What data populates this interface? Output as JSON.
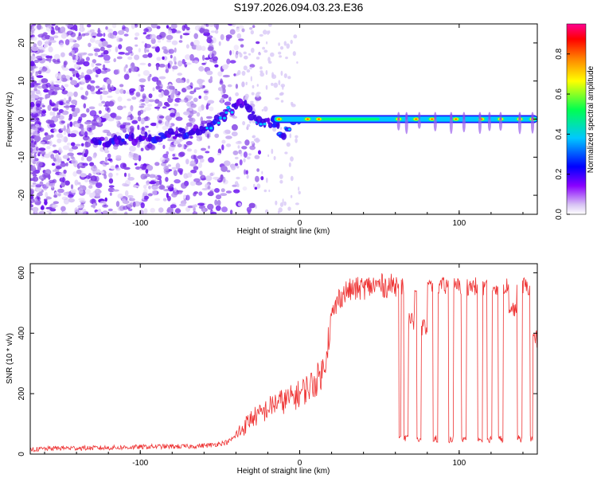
{
  "title": "S197.2026.094.03.23.E36",
  "chart_data": [
    {
      "type": "heatmap",
      "xlabel": "Height of straight line (km)",
      "ylabel": "Frequency (Hz)",
      "xlim": [
        -169,
        149
      ],
      "ylim": [
        -25,
        25
      ],
      "x_ticks": [
        "-100",
        "0",
        "100"
      ],
      "y_ticks": [
        "20",
        "10",
        "0",
        "-10",
        "-20"
      ],
      "colorbar": {
        "label": "Normalized spectral amplitude",
        "range": [
          0,
          0.95
        ],
        "ticks": [
          "0.0",
          "0.2",
          "0.4",
          "0.6",
          "0.8"
        ],
        "colors": [
          "#ffffff",
          "#c8a8f0",
          "#8a00ff",
          "#0000ff",
          "#00c8ff",
          "#00ff50",
          "#ffff00",
          "#ff8000",
          "#ff0000",
          "#ff0090"
        ]
      },
      "description_series": [
        {
          "name": "main tone ridge",
          "x": [
            -160,
            -120,
            -100,
            -80,
            -60,
            -50,
            -45,
            -40,
            -35,
            -30,
            -25,
            -20,
            -15,
            -10,
            -5,
            0,
            10,
            20,
            50,
            80,
            110,
            149
          ],
          "y": [
            -7,
            -6,
            -5,
            -4,
            -3,
            0,
            2,
            3,
            5,
            1,
            -1,
            0,
            -2,
            -4,
            -1,
            0,
            0,
            0,
            0,
            0,
            0,
            0
          ]
        }
      ]
    },
    {
      "type": "line",
      "xlabel": "Height of straight line (km)",
      "ylabel": "SNR (10 * v/v)",
      "xlim": [
        -169,
        149
      ],
      "ylim": [
        0,
        630
      ],
      "x_ticks": [
        "-100",
        "0",
        "100"
      ],
      "y_ticks": [
        "0",
        "200",
        "400",
        "600"
      ],
      "series": [
        {
          "name": "SNR",
          "color": "#ee3333",
          "x": [
            -169,
            -150,
            -130,
            -110,
            -90,
            -70,
            -55,
            -45,
            -40,
            -35,
            -30,
            -25,
            -20,
            -15,
            -10,
            -5,
            0,
            5,
            10,
            15,
            17,
            19,
            20,
            22,
            25,
            30,
            40,
            50,
            55,
            60,
            61,
            62
          ],
          "y": [
            15,
            20,
            20,
            22,
            25,
            25,
            30,
            40,
            60,
            90,
            120,
            130,
            150,
            170,
            175,
            185,
            200,
            220,
            240,
            280,
            350,
            420,
            450,
            480,
            520,
            540,
            550,
            560,
            555,
            560,
            560,
            600
          ]
        }
      ],
      "dropouts_x": [
        62,
        67,
        75,
        85,
        95,
        103,
        113,
        119,
        126,
        138,
        146
      ],
      "dropout_level": 50
    }
  ]
}
